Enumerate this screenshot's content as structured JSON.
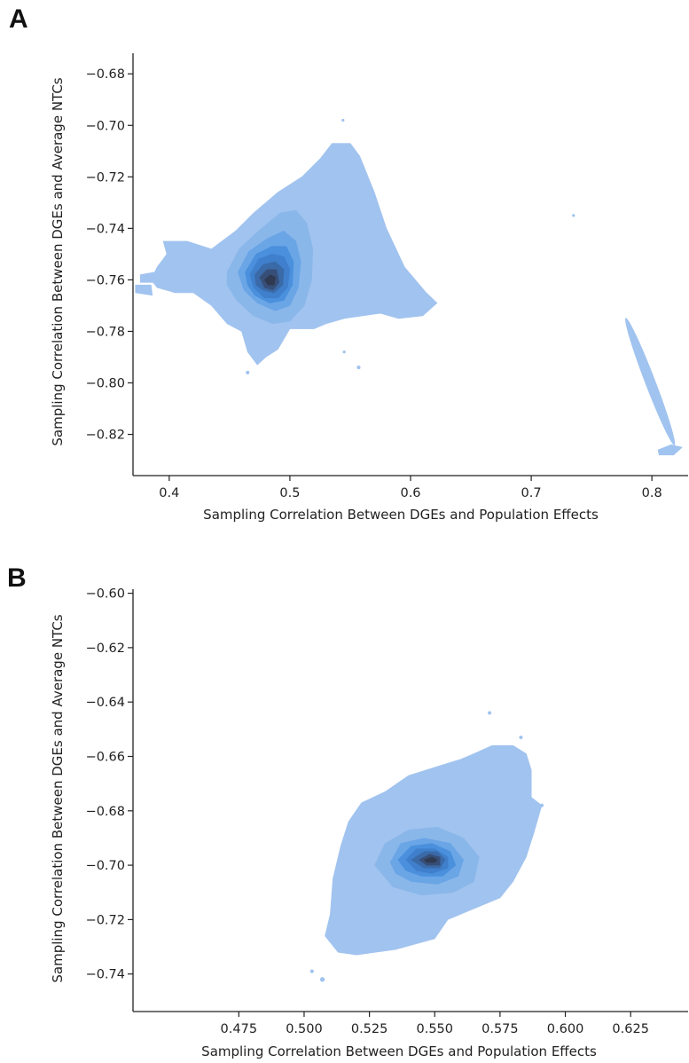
{
  "panels": [
    "A",
    "B"
  ],
  "chart_data": [
    {
      "panel": "A",
      "type": "kde-density-contour",
      "xlabel": "Sampling Correlation Between DGEs and Population Effects",
      "ylabel": "Sampling Correlation Between DGEs and Average NTCs",
      "xlim": [
        0.37,
        0.83
      ],
      "ylim": [
        -0.836,
        -0.672
      ],
      "xticks": [
        "0.4",
        "0.5",
        "0.6",
        "0.7",
        "0.8"
      ],
      "yticks": [
        "−0.68",
        "−0.70",
        "−0.72",
        "−0.74",
        "−0.76",
        "−0.78",
        "−0.80",
        "−0.82"
      ],
      "grid": false,
      "colors": [
        "#a1c3ef",
        "#8ab7ea",
        "#6aa5e6",
        "#4a90dc",
        "#3f7fcb",
        "#3b6aa8",
        "#374f78",
        "#2f3a50"
      ],
      "density_peak": [
        0.482,
        -0.76
      ],
      "regions": [
        {
          "level": 1,
          "polygon": [
            [
              0.395,
              -0.745
            ],
            [
              0.415,
              -0.745
            ],
            [
              0.435,
              -0.748
            ],
            [
              0.455,
              -0.741
            ],
            [
              0.47,
              -0.734
            ],
            [
              0.49,
              -0.726
            ],
            [
              0.51,
              -0.72
            ],
            [
              0.525,
              -0.713
            ],
            [
              0.535,
              -0.707
            ],
            [
              0.55,
              -0.707
            ],
            [
              0.558,
              -0.712
            ],
            [
              0.57,
              -0.726
            ],
            [
              0.58,
              -0.74
            ],
            [
              0.595,
              -0.755
            ],
            [
              0.613,
              -0.765
            ],
            [
              0.622,
              -0.769
            ],
            [
              0.61,
              -0.774
            ],
            [
              0.59,
              -0.775
            ],
            [
              0.575,
              -0.773
            ],
            [
              0.56,
              -0.774
            ],
            [
              0.545,
              -0.775
            ],
            [
              0.53,
              -0.777
            ],
            [
              0.52,
              -0.779
            ],
            [
              0.5,
              -0.779
            ],
            [
              0.49,
              -0.787
            ],
            [
              0.48,
              -0.79
            ],
            [
              0.473,
              -0.793
            ],
            [
              0.465,
              -0.788
            ],
            [
              0.46,
              -0.78
            ],
            [
              0.448,
              -0.777
            ],
            [
              0.435,
              -0.77
            ],
            [
              0.42,
              -0.765
            ],
            [
              0.405,
              -0.765
            ],
            [
              0.39,
              -0.763
            ],
            [
              0.385,
              -0.76
            ],
            [
              0.39,
              -0.755
            ],
            [
              0.398,
              -0.75
            ]
          ]
        },
        {
          "level": 1,
          "polygon": [
            [
              0.376,
              -0.758
            ],
            [
              0.388,
              -0.757
            ],
            [
              0.39,
              -0.761
            ],
            [
              0.376,
              -0.761
            ]
          ]
        },
        {
          "level": 1,
          "polygon": [
            [
              0.372,
              -0.762
            ],
            [
              0.385,
              -0.762
            ],
            [
              0.386,
              -0.766
            ],
            [
              0.372,
              -0.765
            ]
          ]
        },
        {
          "level": 1,
          "polygon": [
            [
              0.805,
              -0.826
            ],
            [
              0.816,
              -0.824
            ],
            [
              0.825,
              -0.825
            ],
            [
              0.818,
              -0.828
            ],
            [
              0.806,
              -0.828
            ]
          ]
        },
        {
          "level": 2,
          "polygon": [
            [
              0.448,
              -0.757
            ],
            [
              0.458,
              -0.748
            ],
            [
              0.474,
              -0.741
            ],
            [
              0.492,
              -0.734
            ],
            [
              0.505,
              -0.733
            ],
            [
              0.514,
              -0.738
            ],
            [
              0.519,
              -0.748
            ],
            [
              0.518,
              -0.76
            ],
            [
              0.512,
              -0.77
            ],
            [
              0.5,
              -0.776
            ],
            [
              0.486,
              -0.777
            ],
            [
              0.47,
              -0.774
            ],
            [
              0.456,
              -0.768
            ],
            [
              0.448,
              -0.762
            ]
          ]
        },
        {
          "level": 3,
          "polygon": [
            [
              0.457,
              -0.757
            ],
            [
              0.466,
              -0.749
            ],
            [
              0.481,
              -0.744
            ],
            [
              0.495,
              -0.741
            ],
            [
              0.505,
              -0.745
            ],
            [
              0.509,
              -0.753
            ],
            [
              0.507,
              -0.763
            ],
            [
              0.5,
              -0.77
            ],
            [
              0.488,
              -0.772
            ],
            [
              0.473,
              -0.769
            ],
            [
              0.462,
              -0.764
            ]
          ]
        },
        {
          "level": 4,
          "polygon": [
            [
              0.463,
              -0.757
            ],
            [
              0.472,
              -0.75
            ],
            [
              0.485,
              -0.747
            ],
            [
              0.497,
              -0.747
            ],
            [
              0.503,
              -0.753
            ],
            [
              0.502,
              -0.762
            ],
            [
              0.495,
              -0.768
            ],
            [
              0.483,
              -0.769
            ],
            [
              0.471,
              -0.766
            ],
            [
              0.465,
              -0.762
            ]
          ]
        },
        {
          "level": 5,
          "polygon": [
            [
              0.467,
              -0.758
            ],
            [
              0.474,
              -0.752
            ],
            [
              0.485,
              -0.75
            ],
            [
              0.495,
              -0.751
            ],
            [
              0.5,
              -0.756
            ],
            [
              0.498,
              -0.763
            ],
            [
              0.49,
              -0.767
            ],
            [
              0.479,
              -0.767
            ],
            [
              0.47,
              -0.763
            ]
          ]
        },
        {
          "level": 6,
          "polygon": [
            [
              0.471,
              -0.758
            ],
            [
              0.478,
              -0.754
            ],
            [
              0.488,
              -0.753
            ],
            [
              0.495,
              -0.756
            ],
            [
              0.494,
              -0.762
            ],
            [
              0.487,
              -0.765
            ],
            [
              0.478,
              -0.764
            ],
            [
              0.472,
              -0.762
            ]
          ]
        },
        {
          "level": 7,
          "polygon": [
            [
              0.475,
              -0.759
            ],
            [
              0.481,
              -0.756
            ],
            [
              0.489,
              -0.756
            ],
            [
              0.491,
              -0.761
            ],
            [
              0.486,
              -0.764
            ],
            [
              0.479,
              -0.763
            ]
          ]
        },
        {
          "level": 8,
          "polygon": [
            [
              0.479,
              -0.76
            ],
            [
              0.484,
              -0.758
            ],
            [
              0.488,
              -0.759
            ],
            [
              0.487,
              -0.762
            ],
            [
              0.482,
              -0.762
            ]
          ]
        }
      ],
      "ellipses": [
        {
          "level": 1,
          "center": [
            0.7985,
            -0.7995
          ],
          "rx": 0.0043,
          "ry": 0.0265,
          "angle_deg": -21
        }
      ],
      "specks": [
        {
          "level": 1,
          "center": [
            0.544,
            -0.698
          ],
          "r": 0.0012
        },
        {
          "level": 1,
          "center": [
            0.735,
            -0.735
          ],
          "r": 0.0012
        },
        {
          "level": 1,
          "center": [
            0.557,
            -0.794
          ],
          "r": 0.0015
        },
        {
          "level": 1,
          "center": [
            0.545,
            -0.788
          ],
          "r": 0.0012
        },
        {
          "level": 1,
          "center": [
            0.465,
            -0.796
          ],
          "r": 0.0015
        },
        {
          "level": 1,
          "center": [
            0.416,
            -0.746
          ],
          "r": 0.0015
        }
      ]
    },
    {
      "panel": "B",
      "type": "kde-density-contour",
      "xlabel": "Sampling Correlation Between DGEs and Population Effects",
      "ylabel": "Sampling Correlation Between DGEs and Average NTCs",
      "xlim": [
        0.4345,
        0.647
      ],
      "ylim": [
        -0.7538,
        -0.5985
      ],
      "xticks": [
        "0.475",
        "0.500",
        "0.525",
        "0.550",
        "0.575",
        "0.600",
        "0.625"
      ],
      "yticks": [
        "−0.60",
        "−0.62",
        "−0.64",
        "−0.66",
        "−0.68",
        "−0.70",
        "−0.72",
        "−0.74"
      ],
      "grid": false,
      "colors": [
        "#a1c3ef",
        "#8ab7ea",
        "#6aa5e6",
        "#4a90dc",
        "#3f7fcb",
        "#3b6aa8",
        "#374f78",
        "#2f3a50"
      ],
      "density_peak": [
        0.549,
        -0.698
      ],
      "regions": [
        {
          "level": 1,
          "polygon": [
            [
              0.51,
              -0.718
            ],
            [
              0.511,
              -0.705
            ],
            [
              0.514,
              -0.693
            ],
            [
              0.517,
              -0.684
            ],
            [
              0.522,
              -0.677
            ],
            [
              0.531,
              -0.673
            ],
            [
              0.54,
              -0.667
            ],
            [
              0.55,
              -0.664
            ],
            [
              0.56,
              -0.661
            ],
            [
              0.565,
              -0.659
            ],
            [
              0.572,
              -0.656
            ],
            [
              0.58,
              -0.656
            ],
            [
              0.585,
              -0.659
            ],
            [
              0.587,
              -0.665
            ],
            [
              0.587,
              -0.675
            ],
            [
              0.591,
              -0.678
            ],
            [
              0.588,
              -0.688
            ],
            [
              0.585,
              -0.697
            ],
            [
              0.58,
              -0.706
            ],
            [
              0.575,
              -0.712
            ],
            [
              0.565,
              -0.716
            ],
            [
              0.555,
              -0.72
            ],
            [
              0.55,
              -0.727
            ],
            [
              0.535,
              -0.731
            ],
            [
              0.52,
              -0.733
            ],
            [
              0.513,
              -0.732
            ],
            [
              0.508,
              -0.726
            ]
          ]
        },
        {
          "level": 2,
          "polygon": [
            [
              0.527,
              -0.7
            ],
            [
              0.531,
              -0.692
            ],
            [
              0.54,
              -0.687
            ],
            [
              0.551,
              -0.686
            ],
            [
              0.561,
              -0.69
            ],
            [
              0.567,
              -0.697
            ],
            [
              0.565,
              -0.706
            ],
            [
              0.557,
              -0.71
            ],
            [
              0.545,
              -0.711
            ],
            [
              0.534,
              -0.708
            ]
          ]
        },
        {
          "level": 3,
          "polygon": [
            [
              0.533,
              -0.699
            ],
            [
              0.537,
              -0.692
            ],
            [
              0.546,
              -0.69
            ],
            [
              0.556,
              -0.692
            ],
            [
              0.561,
              -0.698
            ],
            [
              0.559,
              -0.704
            ],
            [
              0.551,
              -0.707
            ],
            [
              0.541,
              -0.706
            ],
            [
              0.535,
              -0.703
            ]
          ]
        },
        {
          "level": 4,
          "polygon": [
            [
              0.536,
              -0.698
            ],
            [
              0.541,
              -0.693
            ],
            [
              0.549,
              -0.692
            ],
            [
              0.556,
              -0.695
            ],
            [
              0.558,
              -0.7
            ],
            [
              0.553,
              -0.704
            ],
            [
              0.545,
              -0.704
            ],
            [
              0.539,
              -0.702
            ]
          ]
        },
        {
          "level": 5,
          "polygon": [
            [
              0.539,
              -0.698
            ],
            [
              0.543,
              -0.694
            ],
            [
              0.55,
              -0.694
            ],
            [
              0.555,
              -0.697
            ],
            [
              0.555,
              -0.701
            ],
            [
              0.549,
              -0.703
            ],
            [
              0.543,
              -0.702
            ]
          ]
        },
        {
          "level": 6,
          "polygon": [
            [
              0.541,
              -0.698
            ],
            [
              0.546,
              -0.695
            ],
            [
              0.551,
              -0.695
            ],
            [
              0.554,
              -0.698
            ],
            [
              0.552,
              -0.701
            ],
            [
              0.546,
              -0.701
            ]
          ]
        },
        {
          "level": 7,
          "polygon": [
            [
              0.544,
              -0.698
            ],
            [
              0.548,
              -0.696
            ],
            [
              0.552,
              -0.697
            ],
            [
              0.552,
              -0.7
            ],
            [
              0.547,
              -0.7
            ]
          ]
        },
        {
          "level": 8,
          "polygon": [
            [
              0.546,
              -0.698
            ],
            [
              0.549,
              -0.697
            ],
            [
              0.551,
              -0.698
            ],
            [
              0.55,
              -0.699
            ],
            [
              0.547,
              -0.699
            ]
          ]
        }
      ],
      "ellipses": [],
      "specks": [
        {
          "level": 1,
          "center": [
            0.507,
            -0.742
          ],
          "r": 0.0009
        },
        {
          "level": 1,
          "center": [
            0.503,
            -0.739
          ],
          "r": 0.0007
        },
        {
          "level": 1,
          "center": [
            0.571,
            -0.644
          ],
          "r": 0.0007
        },
        {
          "level": 1,
          "center": [
            0.583,
            -0.653
          ],
          "r": 0.0007
        },
        {
          "level": 1,
          "center": [
            0.591,
            -0.678
          ],
          "r": 0.0007
        }
      ]
    }
  ]
}
